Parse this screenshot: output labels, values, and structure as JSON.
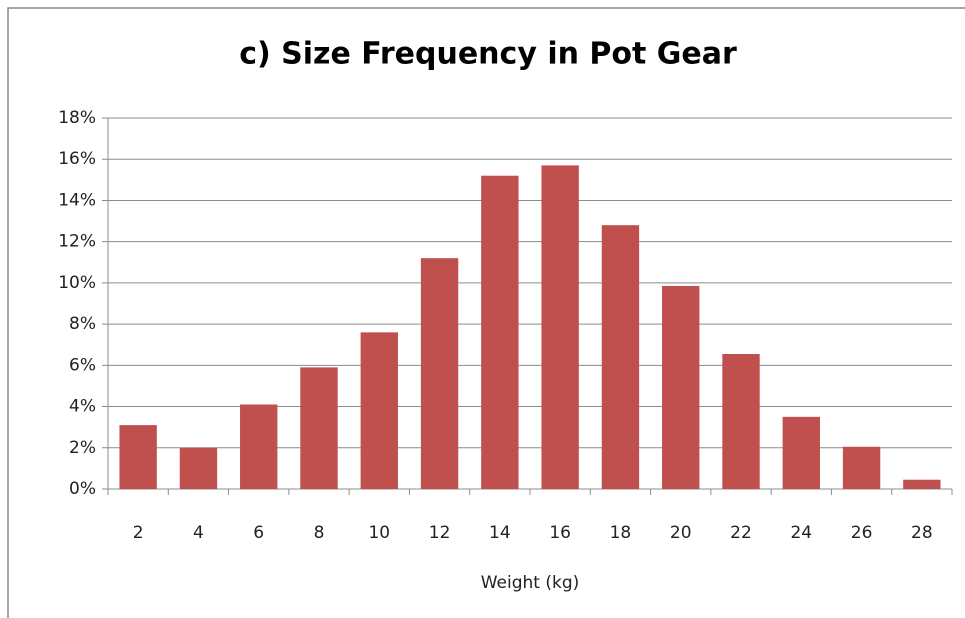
{
  "chart_data": {
    "type": "bar",
    "title": "c) Size Frequency in Pot Gear",
    "x_label": "Weight (kg)",
    "categories": [
      "2",
      "4",
      "6",
      "8",
      "10",
      "12",
      "14",
      "16",
      "18",
      "20",
      "22",
      "24",
      "26",
      "28"
    ],
    "values": [
      3.1,
      2.0,
      4.1,
      5.9,
      7.6,
      11.2,
      15.2,
      15.7,
      12.8,
      9.85,
      6.55,
      3.5,
      2.05,
      0.45
    ],
    "color": "#c0504d",
    "ylim": [
      0,
      18
    ],
    "yticks": [
      {
        "value": 0,
        "label": "0%"
      },
      {
        "value": 2,
        "label": "2%"
      },
      {
        "value": 4,
        "label": "4%"
      },
      {
        "value": 6,
        "label": "6%"
      },
      {
        "value": 8,
        "label": "8%"
      },
      {
        "value": 10,
        "label": "10%"
      },
      {
        "value": 12,
        "label": "12%"
      },
      {
        "value": 14,
        "label": "14%"
      },
      {
        "value": 16,
        "label": "16%"
      },
      {
        "value": 18,
        "label": "18%"
      }
    ],
    "grid": true
  }
}
